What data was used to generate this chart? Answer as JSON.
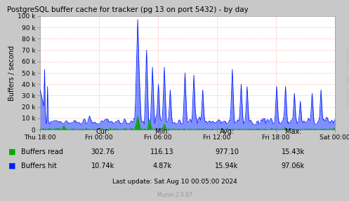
{
  "title": "PostgreSQL buffer cache for tracker (pg 13 on port 5432) - by day",
  "ylabel": "Buffers / second",
  "background_color": "#C8C8C8",
  "plot_bg_color": "#FFFFFF",
  "grid_color": "#FF9999",
  "x_ticks_labels": [
    "Thu 18:00",
    "Fri 00:00",
    "Fri 06:00",
    "Fri 12:00",
    "Fri 18:00",
    "Sat 00:00"
  ],
  "ylim": [
    0,
    100000
  ],
  "yticks": [
    0,
    10000,
    20000,
    30000,
    40000,
    50000,
    60000,
    70000,
    80000,
    90000,
    100000
  ],
  "ytick_labels": [
    "0",
    "10 k",
    "20 k",
    "30 k",
    "40 k",
    "50 k",
    "60 k",
    "70 k",
    "80 k",
    "90 k",
    "100 k"
  ],
  "legend_read_color": "#00AA00",
  "legend_hit_color": "#0022FF",
  "footer_text": "Last update: Sat Aug 10 00:05:00 2024",
  "munin_version": "Munin 2.0.67",
  "watermark": "RRDTOOL / TOBI OETIKER",
  "stats": {
    "cur_read": "302.76",
    "cur_hit": "10.74k",
    "min_read": "116.13",
    "min_hit": "4.87k",
    "avg_read": "977.10",
    "avg_hit": "15.94k",
    "max_read": "15.43k",
    "max_hit": "97.06k"
  },
  "num_points": 400
}
